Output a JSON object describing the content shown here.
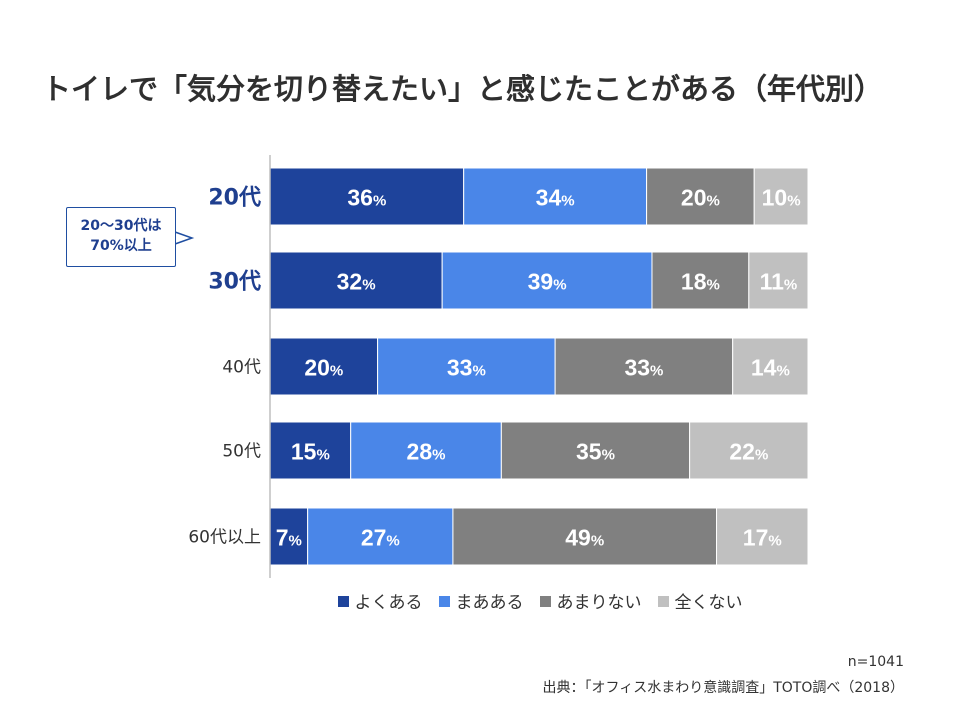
{
  "title": "トイレで「気分を切り替えたい」と感じたことがある（年代別）",
  "callout": {
    "text": "20〜30代は\n70%以上"
  },
  "note": "n=1041",
  "source": "出典：「オフィス水まわり意識調査」TOTO調べ（2018）",
  "colors": {
    "よくある": "#1e439b",
    "まあある": "#4a86e8",
    "あまりない": "#808080",
    "全くない": "#c0c0c0"
  },
  "chart_data": {
    "type": "bar",
    "orientation": "horizontal",
    "stacked": true,
    "normalized": true,
    "title": "トイレで「気分を切り替えたい」と感じたことがある（年代別）",
    "categories": [
      "20代",
      "30代",
      "40代",
      "50代",
      "60代以上"
    ],
    "highlighted_categories": [
      "20代",
      "30代"
    ],
    "series": [
      {
        "name": "よくある",
        "values": [
          36,
          32,
          20,
          15,
          7
        ]
      },
      {
        "name": "まあある",
        "values": [
          34,
          39,
          33,
          28,
          27
        ]
      },
      {
        "name": "あまりない",
        "values": [
          20,
          18,
          33,
          35,
          49
        ]
      },
      {
        "name": "全くない",
        "values": [
          10,
          11,
          14,
          22,
          17
        ]
      }
    ],
    "value_suffix": "%",
    "xlim": [
      0,
      100
    ],
    "grid": false,
    "legend": "bottom"
  }
}
